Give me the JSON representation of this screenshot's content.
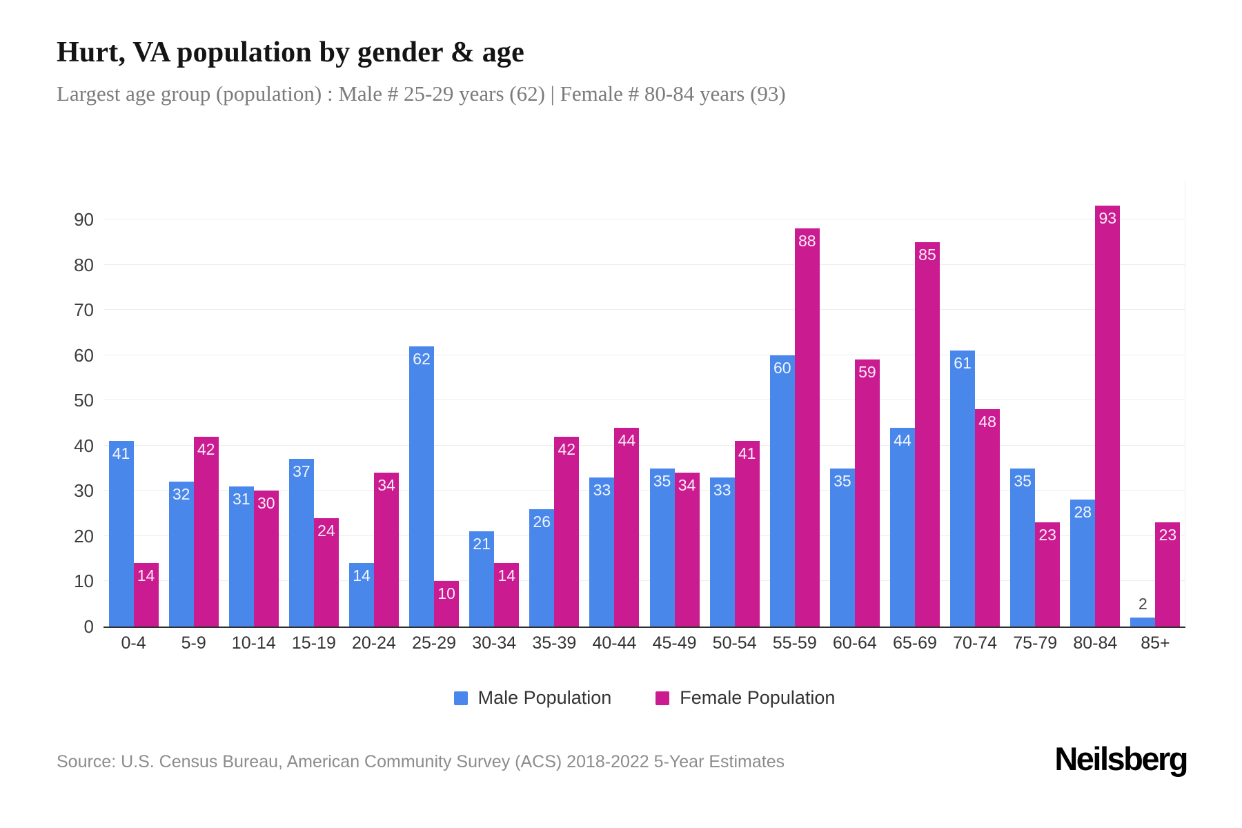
{
  "header": {
    "title": "Hurt, VA population by gender & age",
    "subtitle": "Largest age group (population) : Male # 25-29 years (62) | Female # 80-84 years (93)"
  },
  "chart_data": {
    "type": "bar",
    "title": "Hurt, VA population by gender & age",
    "categories": [
      "0-4",
      "5-9",
      "10-14",
      "15-19",
      "20-24",
      "25-29",
      "30-34",
      "35-39",
      "40-44",
      "45-49",
      "50-54",
      "55-59",
      "60-64",
      "65-69",
      "70-74",
      "75-79",
      "80-84",
      "85+"
    ],
    "series": [
      {
        "name": "Male Population",
        "color": "#4a87eb",
        "values": [
          41,
          32,
          31,
          37,
          14,
          62,
          21,
          26,
          33,
          35,
          33,
          60,
          35,
          44,
          61,
          35,
          28,
          2
        ]
      },
      {
        "name": "Female Population",
        "color": "#cb1b90",
        "values": [
          14,
          42,
          30,
          24,
          34,
          10,
          14,
          42,
          44,
          34,
          41,
          88,
          59,
          85,
          48,
          23,
          93,
          23
        ]
      }
    ],
    "xlabel": "",
    "ylabel": "",
    "ylim": [
      0,
      90
    ],
    "yticks": [
      0,
      10,
      20,
      30,
      40,
      50,
      60,
      70,
      80,
      90
    ],
    "grid": "horizontal",
    "legend_position": "bottom",
    "bar_value_labels": true
  },
  "footer": {
    "source": "Source: U.S. Census Bureau, American Community Survey (ACS) 2018-2022 5-Year Estimates",
    "brand": "Neilsberg"
  }
}
